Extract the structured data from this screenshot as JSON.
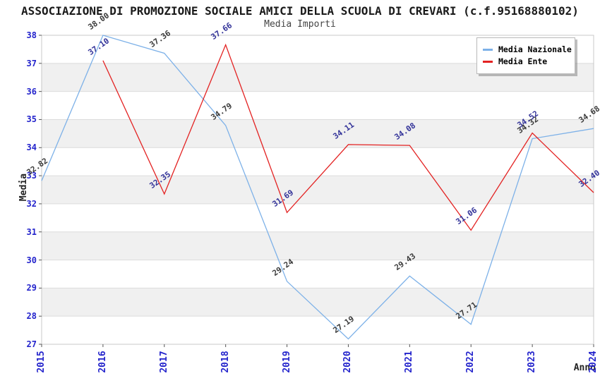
{
  "header": {
    "title": "ASSOCIAZIONE DI PROMOZIONE SOCIALE AMICI DELLA SCUOLA DI CREVARI (c.f.95168880102)",
    "subtitle": "Media Importi"
  },
  "legend": {
    "items": [
      {
        "label": "Media Nazionale",
        "color": "#7db1e8"
      },
      {
        "label": "Media Ente",
        "color": "#e32222"
      }
    ]
  },
  "axes": {
    "ylabel": "Media",
    "xlabel": "Anno",
    "tick_color": "#2424cc"
  },
  "chart_data": {
    "type": "line",
    "title": "ASSOCIAZIONE DI PROMOZIONE SOCIALE AMICI DELLA SCUOLA DI CREVARI (c.f.95168880102)",
    "subtitle": "Media Importi",
    "xlabel": "Anno",
    "ylabel": "Media",
    "categories": [
      "2015",
      "2016",
      "2017",
      "2018",
      "2019",
      "2020",
      "2021",
      "2022",
      "2023",
      "2024"
    ],
    "series": [
      {
        "name": "Media Nazionale",
        "color": "#7db1e8",
        "label_color": "#3a3a3a",
        "values": [
          32.82,
          38.0,
          37.36,
          34.79,
          29.24,
          27.19,
          29.43,
          27.71,
          34.32,
          34.68
        ]
      },
      {
        "name": "Media Ente",
        "color": "#e32222",
        "label_color": "#333399",
        "values": [
          null,
          37.1,
          32.35,
          37.66,
          31.69,
          34.11,
          34.08,
          31.06,
          34.52,
          32.4
        ]
      }
    ],
    "ylim": [
      27,
      38
    ],
    "yticks": [
      27,
      28,
      29,
      30,
      31,
      32,
      33,
      34,
      35,
      36,
      37,
      38
    ],
    "grid": "horizontal-bands",
    "band_color": "#f0f0f0",
    "gridline_color": "#dcdcdc",
    "border_color": "#c8c8c8",
    "legend_position": "top-right",
    "value_label_decimals": 2
  }
}
